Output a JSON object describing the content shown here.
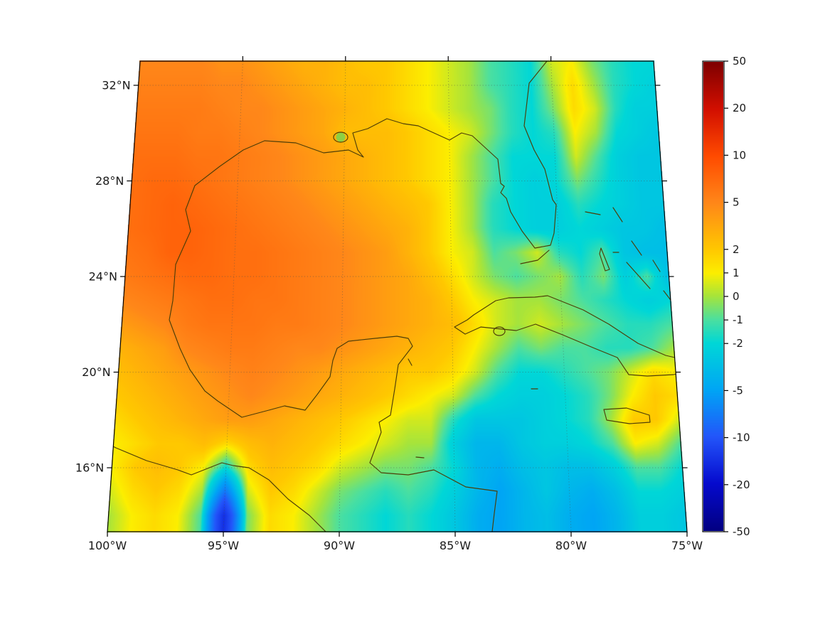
{
  "figure": {
    "background": "#ffffff",
    "frame_color": "#000000",
    "label_color": "#1a1a1a",
    "gridline_color": "#4d4d4d",
    "coastline_color": "#4d3e08",
    "lake_fill": "#86d148"
  },
  "chart_data": {
    "type": "heatmap",
    "title": "",
    "region": "Gulf of Mexico and western Caribbean",
    "projection": "conic-style trapezoidal graticule, gridlines dotted",
    "x_axis": {
      "label": "longitude",
      "tick_values": [
        -100,
        -95,
        -90,
        -85,
        -80,
        -75
      ],
      "tick_labels": [
        "100°W",
        "95°W",
        "90°W",
        "85°W",
        "80°W",
        "75°W"
      ]
    },
    "y_axis": {
      "label": "latitude",
      "tick_values": [
        32,
        28,
        24,
        20,
        16
      ],
      "tick_labels": [
        "32°N",
        "28°N",
        "24°N",
        "20°N",
        "16°N"
      ]
    },
    "colorbar": {
      "range": [
        -50,
        50
      ],
      "tick_labels": [
        "50",
        "20",
        "10",
        "5",
        "2",
        "1",
        "0",
        "-1",
        "-2",
        "-5",
        "-10",
        "-20",
        "-50"
      ],
      "boundaries": [
        50,
        20,
        10,
        5,
        2,
        1,
        0,
        -1,
        -2,
        -5,
        -10,
        -20,
        -50
      ],
      "positions": [
        0,
        0.1,
        0.2,
        0.3,
        0.4,
        0.45,
        0.5,
        0.55,
        0.6,
        0.7,
        0.8,
        0.9,
        1
      ]
    },
    "colormap_stops": [
      [
        0.0,
        [
          127,
          0,
          0
        ]
      ],
      [
        0.1,
        [
          210,
          15,
          0
        ]
      ],
      [
        0.2,
        [
          255,
          75,
          0
        ]
      ],
      [
        0.3,
        [
          255,
          135,
          25
        ]
      ],
      [
        0.4,
        [
          255,
          200,
          0
        ]
      ],
      [
        0.45,
        [
          252,
          238,
          0
        ]
      ],
      [
        0.5,
        [
          165,
          228,
          60
        ]
      ],
      [
        0.55,
        [
          75,
          223,
          160
        ]
      ],
      [
        0.6,
        [
          0,
          215,
          215
        ]
      ],
      [
        0.7,
        [
          0,
          165,
          245
        ]
      ],
      [
        0.8,
        [
          35,
          85,
          250
        ]
      ],
      [
        0.9,
        [
          5,
          10,
          205
        ]
      ],
      [
        1.0,
        [
          2,
          0,
          130
        ]
      ]
    ],
    "grid": {
      "lon_start": -100,
      "lon_step": 1,
      "lat_start": 33,
      "lat_step": -1,
      "values": [
        [
          5,
          5,
          5,
          5,
          4.5,
          4.5,
          4,
          3.5,
          3,
          3,
          2.5,
          2,
          2,
          1.5,
          1,
          0.5,
          0,
          -1,
          -1.5,
          -2,
          0.5,
          1,
          -0.5,
          -1.5,
          -2,
          -2
        ],
        [
          5.5,
          5.5,
          5.5,
          5.5,
          5,
          5,
          4.5,
          4,
          3.5,
          3,
          2.5,
          2.5,
          2,
          1.5,
          1,
          0.5,
          0,
          -1,
          -1.5,
          -2,
          0,
          1.5,
          0,
          -1.5,
          -2,
          -2.5
        ],
        [
          6,
          6,
          6,
          6,
          5.5,
          5,
          5,
          4.5,
          4,
          3.5,
          3,
          2.5,
          2,
          1.5,
          1,
          0.5,
          0,
          -0.5,
          -1.5,
          -2,
          -0.5,
          1.5,
          0.5,
          -1.5,
          -2.5,
          -2.5
        ],
        [
          6.5,
          6.5,
          6.5,
          6,
          6,
          5.5,
          5,
          4.5,
          4,
          3.5,
          2.5,
          2.5,
          2.5,
          2,
          1.5,
          1,
          0.5,
          -0.5,
          -1.5,
          -2,
          -1.5,
          1,
          0,
          -2,
          -2.5,
          -3
        ],
        [
          7,
          7,
          7,
          6.5,
          6.5,
          6,
          5.5,
          5,
          4.5,
          4,
          3.5,
          3,
          2.5,
          2,
          1.5,
          1,
          0,
          -1,
          -2,
          -2,
          -2,
          0.5,
          -1,
          -2.5,
          -3,
          -3
        ],
        [
          7,
          7.5,
          7.5,
          7,
          6.5,
          6,
          5.5,
          5,
          4.5,
          4,
          3.5,
          3,
          2.5,
          2,
          1.5,
          1,
          0,
          -1,
          -2,
          -2.5,
          -2,
          -0.5,
          -1.5,
          -2.5,
          -3,
          -3
        ],
        [
          7,
          7.5,
          8,
          7.5,
          7,
          6.5,
          6,
          5.5,
          5,
          4.5,
          4,
          3.5,
          3,
          2.5,
          2,
          1,
          0,
          -1.5,
          -2,
          -2.5,
          -2.5,
          -1.5,
          -2,
          -2.5,
          -3,
          -3
        ],
        [
          7,
          7.5,
          8,
          8,
          7.5,
          7,
          6.5,
          6,
          5.5,
          5,
          4.5,
          4,
          3.5,
          3,
          2,
          1,
          0,
          -1.5,
          -2,
          -2.5,
          -2.5,
          -2,
          -2.5,
          -3,
          -3,
          -3.5
        ],
        [
          6.5,
          7,
          8,
          8,
          7.5,
          7,
          7,
          6.5,
          6,
          5.5,
          5,
          4.5,
          4,
          3,
          2,
          1,
          0.5,
          -1,
          -0.5,
          0.5,
          -1.5,
          -2,
          -1,
          -3,
          -3.5,
          -3.5
        ],
        [
          6,
          6.5,
          7,
          7.5,
          7.5,
          7,
          7,
          6.5,
          6,
          5.5,
          5,
          4.5,
          4,
          3.5,
          2.5,
          1.5,
          0.5,
          -0.5,
          -1,
          -0.5,
          0,
          -1.5,
          -0.5,
          -2.5,
          -1,
          -3.5
        ],
        [
          5,
          5.5,
          6,
          6.5,
          7,
          7,
          6.5,
          6.5,
          6,
          5.5,
          5,
          4.5,
          4,
          3.5,
          3,
          2,
          1,
          0.5,
          0,
          0,
          -0.5,
          -1,
          -1.5,
          -2,
          -2.5,
          -2
        ],
        [
          4,
          4.5,
          5,
          6,
          6.5,
          6.5,
          6.5,
          6,
          6,
          5.5,
          5,
          4.5,
          4,
          3.5,
          3,
          2.5,
          1.5,
          0.5,
          0,
          0.5,
          0,
          -0.5,
          -1,
          -1.5,
          -1.5,
          -1
        ],
        [
          3,
          3.5,
          4,
          5,
          5.5,
          6,
          6,
          5.5,
          5,
          5,
          4.5,
          4,
          3.5,
          3,
          2.5,
          2,
          1,
          0,
          -1,
          -0.5,
          -1,
          -1,
          -1.5,
          -1.5,
          -1,
          0
        ],
        [
          2.5,
          3,
          3.5,
          4,
          4.5,
          5,
          5.5,
          5,
          4.5,
          4,
          3.5,
          3,
          2.5,
          2,
          2,
          1.5,
          0.5,
          -1,
          -2,
          -2,
          -1.5,
          -1,
          -0.5,
          0.5,
          1.5,
          1
        ],
        [
          2,
          2.5,
          3,
          3.5,
          4,
          4.5,
          5,
          4.5,
          4,
          3.5,
          3,
          2.5,
          2,
          1.5,
          1,
          0.5,
          -1,
          -2,
          -2.5,
          -2.5,
          -2,
          -1.5,
          -0.5,
          1,
          2,
          1.5
        ],
        [
          1.5,
          2,
          2.5,
          3,
          3.5,
          4,
          4,
          3.5,
          3,
          2.5,
          2,
          1.5,
          1,
          0.5,
          0.5,
          -1.5,
          -3,
          -3,
          -3,
          -2.5,
          -2,
          -1.5,
          0,
          2,
          2,
          0.5
        ],
        [
          1,
          1.5,
          2,
          2,
          2.5,
          1.5,
          2.5,
          3,
          2.5,
          2,
          1.5,
          1,
          0.5,
          0,
          0,
          -2.5,
          -4,
          -4,
          -3,
          -2.5,
          -2.5,
          -2,
          -1,
          1,
          0.5,
          -1
        ],
        [
          1,
          2,
          2.5,
          2,
          1,
          -2,
          1.5,
          2.5,
          2,
          1.5,
          0.5,
          0,
          -0.5,
          -0.5,
          -1,
          -2,
          -4,
          -4.5,
          -3.5,
          -3,
          -3.5,
          -3.5,
          -2.5,
          -1,
          -1,
          -2
        ],
        [
          0.5,
          1.5,
          2,
          1.5,
          0,
          -8,
          0.5,
          2,
          1.5,
          0.5,
          -0.5,
          -1,
          -1.5,
          -1,
          -1.5,
          -2.5,
          -4,
          -5,
          -4,
          -3,
          -4,
          -4.5,
          -3.5,
          -2,
          -2,
          -2.5
        ],
        [
          0,
          1,
          1.5,
          1,
          -1,
          -15,
          -0.5,
          1.5,
          1,
          0,
          -1,
          -1.5,
          -2,
          -1.5,
          -2,
          -3,
          -4.5,
          -5,
          -4,
          -3.5,
          -4.5,
          -5,
          -4,
          -2.5,
          -2.5,
          -3
        ]
      ]
    }
  }
}
